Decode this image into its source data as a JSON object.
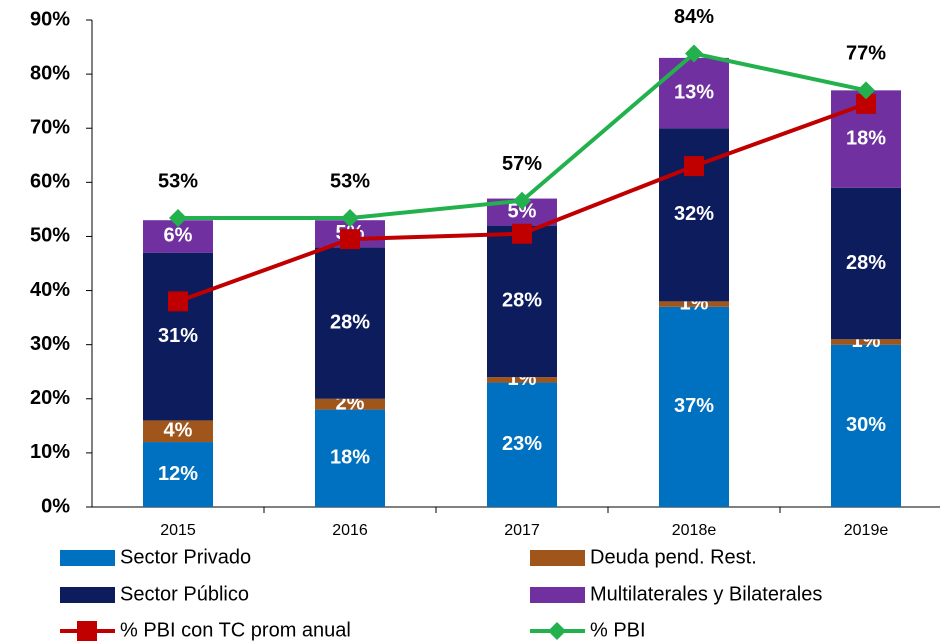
{
  "chart_data": {
    "type": "bar",
    "stacked": true,
    "categories": [
      "2015",
      "2016",
      "2017",
      "2018e",
      "2019e"
    ],
    "ylim": [
      0,
      90
    ],
    "yticks": [
      {
        "value": 0,
        "label": "0%"
      },
      {
        "value": 10,
        "label": "10%"
      },
      {
        "value": 20,
        "label": "20%"
      },
      {
        "value": 30,
        "label": "30%"
      },
      {
        "value": 40,
        "label": "40%"
      },
      {
        "value": 50,
        "label": "50%"
      },
      {
        "value": 60,
        "label": "60%"
      },
      {
        "value": 70,
        "label": "70%"
      },
      {
        "value": 80,
        "label": "80%"
      },
      {
        "value": 90,
        "label": "90%"
      }
    ],
    "series": [
      {
        "name": "Sector Privado",
        "type": "bar",
        "color": "#0070c0",
        "values": [
          12,
          18,
          23,
          37,
          30
        ],
        "value_labels": [
          "12%",
          "18%",
          "23%",
          "37%",
          "30%"
        ]
      },
      {
        "name": "Deuda pend. Rest.",
        "type": "bar",
        "color": "#a0561a",
        "values": [
          4,
          2,
          1,
          1,
          1
        ],
        "value_labels": [
          "4%",
          "2%",
          "1%",
          "1%",
          "1%"
        ]
      },
      {
        "name": "Sector Público",
        "type": "bar",
        "color": "#0c1c5c",
        "values": [
          31,
          28,
          28,
          32,
          28
        ],
        "value_labels": [
          "31%",
          "28%",
          "28%",
          "32%",
          "28%"
        ]
      },
      {
        "name": "Multilaterales y Bilaterales",
        "type": "bar",
        "color": "#7030a0",
        "values": [
          6,
          5,
          5,
          13,
          18
        ],
        "value_labels": [
          "6%",
          "5%",
          "5%",
          "13%",
          "18%"
        ]
      },
      {
        "name": "% PBI con TC prom anual",
        "type": "line",
        "marker": "square",
        "color": "#c00000",
        "values": [
          38,
          49.5,
          50.5,
          63,
          74.5
        ]
      },
      {
        "name": "% PBI",
        "type": "line",
        "marker": "diamond",
        "color": "#22b14c",
        "values": [
          53.4,
          53.4,
          56.6,
          83.8,
          77
        ],
        "value_labels": [
          "53%",
          "53%",
          "57%",
          "84%",
          "77%"
        ]
      }
    ]
  }
}
